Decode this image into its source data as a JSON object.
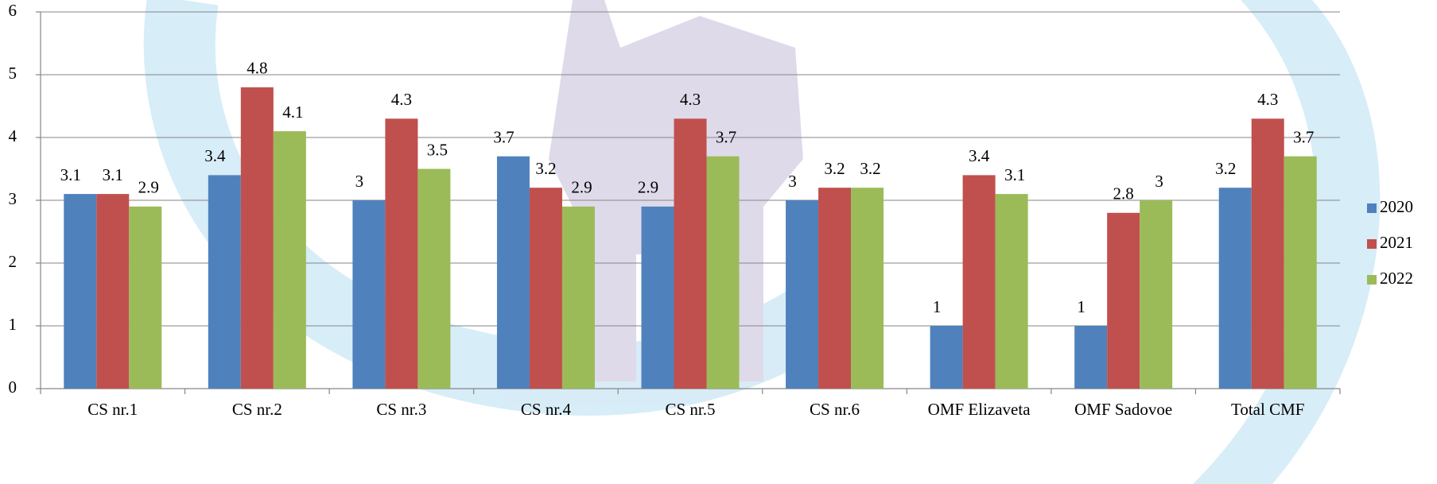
{
  "chart_data": {
    "type": "bar",
    "categories": [
      "CS nr.1",
      "CS nr.2",
      "CS nr.3",
      "CS nr.4",
      "CS nr.5",
      "CS nr.6",
      "OMF Elizaveta",
      "OMF Sadovoe",
      "Total CMF"
    ],
    "series": [
      {
        "name": "2020",
        "color": "#4f81bd",
        "values": [
          3.1,
          3.4,
          3,
          3.7,
          2.9,
          3,
          1,
          1,
          3.2
        ]
      },
      {
        "name": "2021",
        "color": "#c0504d",
        "values": [
          3.1,
          4.8,
          4.3,
          3.2,
          4.3,
          3.2,
          3.4,
          2.8,
          4.3
        ]
      },
      {
        "name": "2022",
        "color": "#9bbb59",
        "values": [
          2.9,
          4.1,
          3.5,
          2.9,
          3.7,
          3.2,
          3.1,
          3,
          3.7
        ]
      }
    ],
    "ylim": [
      0,
      6
    ],
    "yticks": [
      0,
      1,
      2,
      3,
      4,
      5,
      6
    ],
    "grid": true,
    "legend": "right"
  }
}
